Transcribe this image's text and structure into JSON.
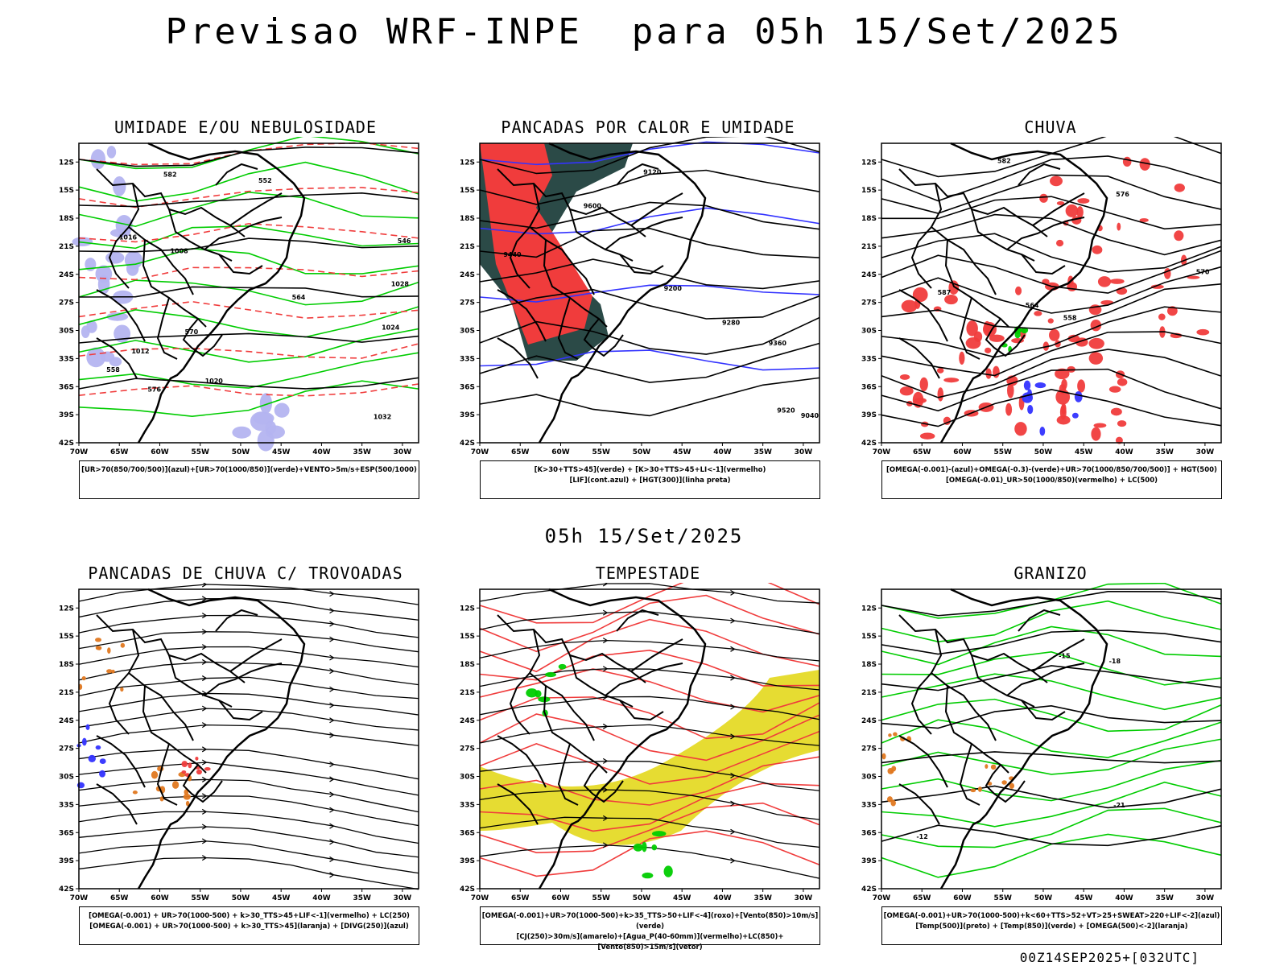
{
  "page": {
    "main_title": "Previsao WRF-INPE  para 05h 15/Set/2025",
    "mid_title": "05h 15/Set/2025",
    "footer": "00Z14SEP2025+[032UTC]"
  },
  "axes": {
    "lat_labels": [
      "12S",
      "15S",
      "18S",
      "21S",
      "24S",
      "27S",
      "30S",
      "33S",
      "36S",
      "39S",
      "42S"
    ],
    "lon_labels": [
      "70W",
      "65W",
      "60W",
      "55W",
      "50W",
      "45W",
      "40W",
      "35W",
      "30W"
    ],
    "lat_range": [
      -42,
      -10
    ],
    "lon_range": [
      -70,
      -28
    ]
  },
  "colors": {
    "red": "#f03c3c",
    "green": "#00cc00",
    "blue": "#3333ff",
    "lightblue": "#b4b4f0",
    "darkgreen": "#2b4a47",
    "yellow": "#e6dc32",
    "orange": "#e07820"
  },
  "chart_data": [
    {
      "type": "other",
      "panel": "p1",
      "title": "UMIDADE E/OU NEBULOSIDADE",
      "legend": [
        "[UR>70(850/700/500)](azul)+[UR>70(1000/850)](verde)+VENTO>5m/s+ESP(500/1000)"
      ],
      "contour_labels": [
        "1008",
        "1012",
        "1016",
        "1020",
        "1024",
        "1028",
        "1032",
        "570",
        "576",
        "582",
        "552",
        "558",
        "564",
        "546"
      ]
    },
    {
      "type": "other",
      "panel": "p2",
      "title": "PANCADAS POR CALOR E UMIDADE",
      "legend": [
        "[K>30+TTS>45](verde)  +  [K>30+TTS>45+LI<-1](vermelho)",
        "[LIF](cont.azul)  +  [HGT(300)](linha preta)"
      ],
      "contour_labels": [
        "9600",
        "9520",
        "9440",
        "9360",
        "9280",
        "9200",
        "9120",
        "9040"
      ]
    },
    {
      "type": "other",
      "panel": "p3",
      "title": "CHUVA",
      "legend": [
        "[OMEGA(-0.001)-(azul)+OMEGA(-0.3)-(verde)+UR>70(1000/850/700/500)] + HGT(500)",
        "[OMEGA(-0.01)_UR>50(1000/850)(vermelho) + LC(500)"
      ],
      "contour_labels": [
        "582",
        "576",
        "570",
        "564",
        "558",
        "587"
      ]
    },
    {
      "type": "other",
      "panel": "p4",
      "title": "PANCADAS DE CHUVA C/ TROVOADAS",
      "legend": [
        "[OMEGA(-0.001) + UR>70(1000-500) + k>30_TTS>45+LIF<-1](vermelho) + LC(250)",
        "[OMEGA(-0.001) + UR>70(1000-500) + k>30_TTS>45](laranja) + [DIVG(250)](azul)"
      ]
    },
    {
      "type": "other",
      "panel": "p5",
      "title": "TEMPESTADE",
      "legend": [
        "[OMEGA(-0.001)+UR>70(1000-500)+k>35_TTS>50+LIF<-4](roxo)+[Vento(850)>10m/s](verde)",
        "[CJ(250)>30m/s](amarelo)+[Agua_P(40-60mm)](vermelho)+LC(850)+[Vento(850)>15m/s](vetor)"
      ]
    },
    {
      "type": "other",
      "panel": "p6",
      "title": "GRANIZO",
      "legend": [
        "[OMEGA(-0.001)+UR>70(1000-500)+k<60+TTS>52+VT>25+SWEAT>220+LIF<-2](azul)",
        "[Temp(500)](preto) + [Temp(850)](verde) + [OMEGA(500)<-2](laranja)"
      ],
      "contour_labels": [
        "-15",
        "-18",
        "-21",
        "-12"
      ]
    }
  ]
}
